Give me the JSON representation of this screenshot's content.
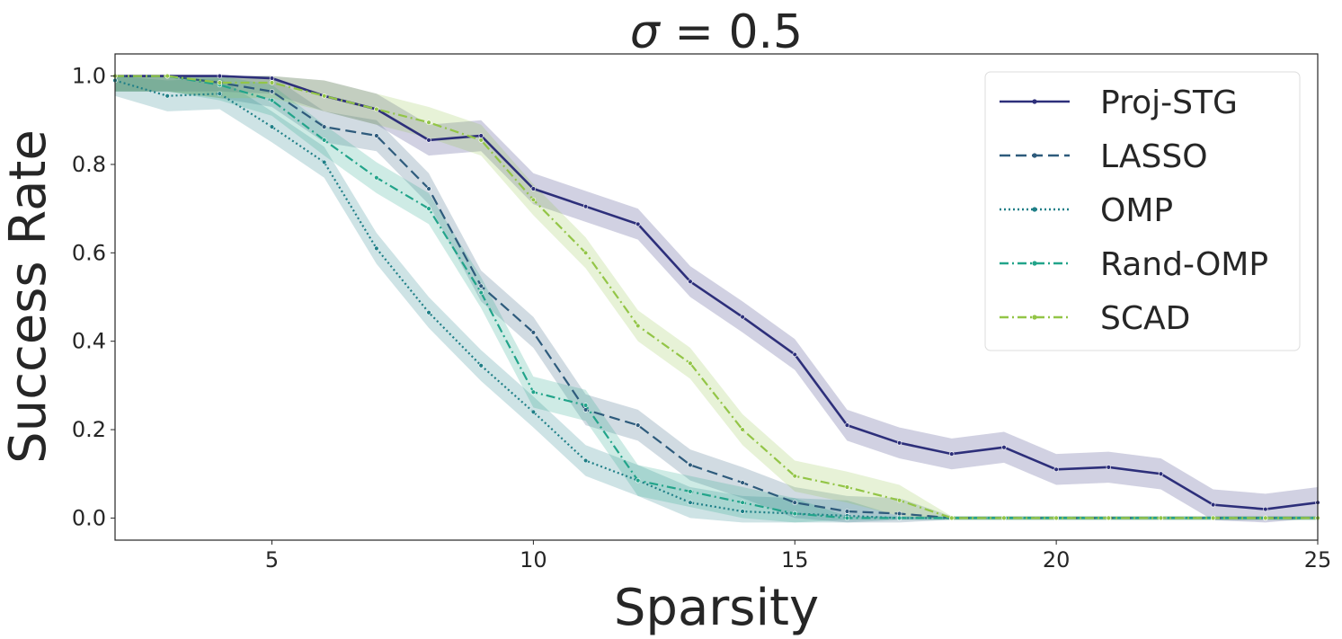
{
  "chart_data": {
    "type": "line",
    "title": "σ = 0.5",
    "title_sigma": "σ",
    "title_rest": " = 0.5",
    "xlabel": "Sparsity",
    "ylabel": "Success Rate",
    "xlim": [
      2,
      25
    ],
    "ylim": [
      -0.05,
      1.05
    ],
    "xticks": [
      "5",
      "10",
      "15",
      "20",
      "25"
    ],
    "yticks": [
      "0.0",
      "0.2",
      "0.4",
      "0.6",
      "0.8",
      "1.0"
    ],
    "legend_position": "top-right",
    "grid": false,
    "x": [
      2,
      3,
      4,
      5,
      6,
      7,
      8,
      9,
      10,
      11,
      12,
      13,
      14,
      15,
      16,
      17,
      18,
      19,
      20,
      21,
      22,
      23,
      24,
      25
    ],
    "series": [
      {
        "name": "Proj-STG",
        "color": "#2d2f7a",
        "dash": "solid",
        "values": [
          1.0,
          1.0,
          1.0,
          0.995,
          0.955,
          0.925,
          0.855,
          0.865,
          0.745,
          0.705,
          0.665,
          0.535,
          0.455,
          0.37,
          0.21,
          0.17,
          0.145,
          0.16,
          0.11,
          0.115,
          0.1,
          0.03,
          0.02,
          0.035
        ]
      },
      {
        "name": "LASSO",
        "color": "#2e5b7c",
        "dash": "dashed",
        "values": [
          1.0,
          1.0,
          0.985,
          0.965,
          0.885,
          0.865,
          0.745,
          0.525,
          0.42,
          0.245,
          0.21,
          0.12,
          0.08,
          0.035,
          0.015,
          0.01,
          0.0,
          0.0,
          0.0,
          0.0,
          0.0,
          0.0,
          0.0,
          0.0
        ]
      },
      {
        "name": "OMP",
        "color": "#1f7f87",
        "dash": "dotted",
        "values": [
          0.99,
          0.955,
          0.96,
          0.885,
          0.805,
          0.61,
          0.465,
          0.345,
          0.24,
          0.13,
          0.085,
          0.035,
          0.015,
          0.01,
          0.005,
          0.0,
          0.0,
          0.0,
          0.0,
          0.0,
          0.0,
          0.0,
          0.0,
          0.0
        ]
      },
      {
        "name": "Rand-OMP",
        "color": "#22a48a",
        "dash": "dashdot",
        "values": [
          1.0,
          1.0,
          0.98,
          0.945,
          0.855,
          0.77,
          0.7,
          0.51,
          0.285,
          0.255,
          0.085,
          0.06,
          0.035,
          0.01,
          0.0,
          0.0,
          0.0,
          0.0,
          0.0,
          0.0,
          0.0,
          0.0,
          0.0,
          0.0
        ]
      },
      {
        "name": "SCAD",
        "color": "#93c547",
        "dash": "dashdot",
        "values": [
          1.0,
          1.0,
          0.985,
          0.985,
          0.955,
          0.925,
          0.895,
          0.855,
          0.72,
          0.6,
          0.435,
          0.35,
          0.2,
          0.095,
          0.07,
          0.04,
          0.0,
          0.0,
          0.0,
          0.0,
          0.0,
          0.0,
          0.0,
          0.0
        ]
      }
    ]
  }
}
